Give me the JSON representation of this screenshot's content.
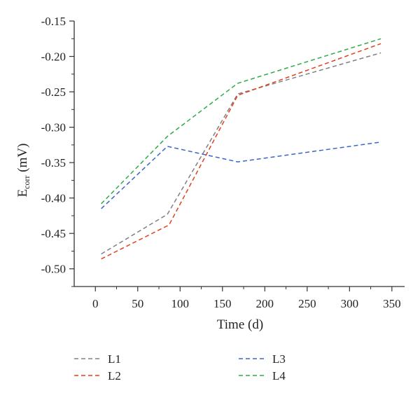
{
  "chart_data": {
    "type": "line",
    "xlabel": "Time (d)",
    "ylabel": {
      "main": "E",
      "sub": "corr",
      "unit": " (mV)"
    },
    "xlim": [
      -25,
      365
    ],
    "ylim": [
      -0.525,
      -0.15
    ],
    "x_ticks": [
      0,
      50,
      100,
      150,
      200,
      250,
      300,
      350
    ],
    "x_tick_labels": [
      "0",
      "50",
      "100",
      "150",
      "200",
      "250",
      "300",
      "350"
    ],
    "y_ticks": [
      -0.15,
      -0.2,
      -0.25,
      -0.3,
      -0.35,
      -0.4,
      -0.45,
      -0.5
    ],
    "y_tick_labels": [
      "-0.15",
      "-0.20",
      "-0.25",
      "-0.30",
      "-0.35",
      "-0.40",
      "-0.45",
      "-0.50"
    ],
    "grid": false,
    "legend_position": "bottom",
    "line_style": "dashed",
    "series": [
      {
        "name": "L1",
        "color": "#808080",
        "x": [
          7,
          85,
          168,
          337
        ],
        "y": [
          -0.479,
          -0.423,
          -0.253,
          -0.195
        ]
      },
      {
        "name": "L2",
        "color": "#e2401c",
        "x": [
          7,
          87,
          168,
          337
        ],
        "y": [
          -0.486,
          -0.438,
          -0.255,
          -0.182
        ]
      },
      {
        "name": "L3",
        "color": "#3a66c4",
        "x": [
          7,
          85,
          168,
          337
        ],
        "y": [
          -0.415,
          -0.327,
          -0.349,
          -0.321
        ]
      },
      {
        "name": "L4",
        "color": "#2eaa48",
        "x": [
          7,
          85,
          168,
          337
        ],
        "y": [
          -0.408,
          -0.313,
          -0.238,
          -0.175
        ]
      }
    ]
  }
}
